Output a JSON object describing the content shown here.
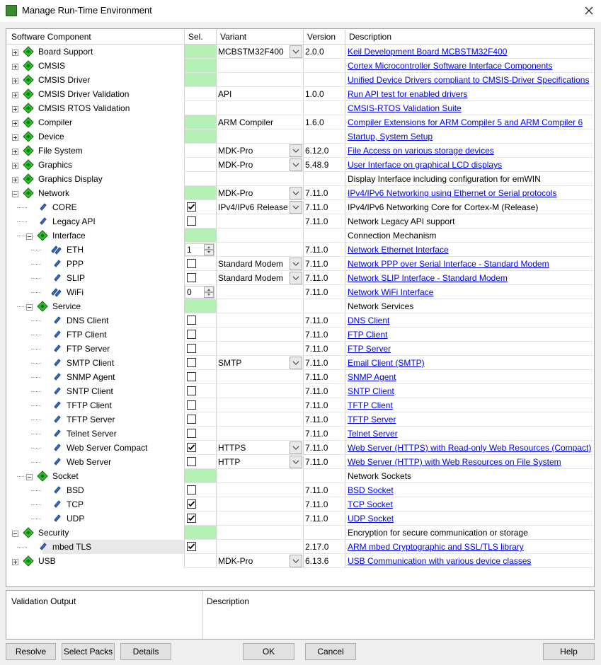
{
  "window": {
    "title": "Manage Run-Time Environment"
  },
  "grid": {
    "headers": [
      "Software Component",
      "Sel.",
      "Variant",
      "Version",
      "Description"
    ],
    "rows": [
      {
        "name": "Board Support",
        "icon": "green",
        "expanded": false,
        "sel": "required",
        "variant": "MCBSTM32F400",
        "dropdown": true,
        "version": "2.0.0",
        "description": "Keil Development Board MCBSTM32F400",
        "link": true
      },
      {
        "name": "CMSIS",
        "icon": "green",
        "expanded": false,
        "sel": "required",
        "description": "Cortex Microcontroller Software Interface Components",
        "link": true
      },
      {
        "name": "CMSIS Driver",
        "icon": "green",
        "expanded": false,
        "sel": "required",
        "description": "Unified Device Drivers compliant to CMSIS-Driver Specifications",
        "link": true
      },
      {
        "name": "CMSIS Driver Validation",
        "icon": "green",
        "expanded": false,
        "variant": "API",
        "version": "1.0.0",
        "description": "Run API test for enabled drivers",
        "link": true
      },
      {
        "name": "CMSIS RTOS Validation",
        "icon": "green",
        "expanded": false,
        "description": "CMSIS-RTOS Validation Suite",
        "link": true
      },
      {
        "name": "Compiler",
        "icon": "green",
        "expanded": false,
        "sel": "required",
        "variant": "ARM Compiler",
        "version": "1.6.0",
        "description": "Compiler Extensions for ARM Compiler 5 and ARM Compiler 6",
        "link": true
      },
      {
        "name": "Device",
        "icon": "green",
        "expanded": false,
        "sel": "required",
        "description": "Startup, System Setup",
        "link": true
      },
      {
        "name": "File System",
        "icon": "green",
        "expanded": false,
        "variant": "MDK-Pro",
        "dropdown": true,
        "version": "6.12.0",
        "description": "File Access on various storage devices",
        "link": true
      },
      {
        "name": "Graphics",
        "icon": "green",
        "expanded": false,
        "variant": "MDK-Pro",
        "dropdown": true,
        "version": "5.48.9",
        "description": "User Interface on graphical LCD displays",
        "link": true
      },
      {
        "name": "Graphics Display",
        "icon": "green",
        "expanded": false,
        "description": "Display Interface including configuration for emWIN"
      },
      {
        "name": "Network",
        "icon": "green",
        "expanded": true,
        "sel": "required",
        "variant": "MDK-Pro",
        "dropdown": true,
        "version": "7.11.0",
        "description": "IPv4/IPv6 Networking using Ethernet or Serial protocols",
        "link": true,
        "children": [
          {
            "name": "CORE",
            "icon": "blue",
            "sel": "checkbox",
            "checked": true,
            "variant": "IPv4/IPv6 Release",
            "dropdown": true,
            "version": "7.11.0",
            "description": "IPv4/IPv6 Networking Core for Cortex-M (Release)"
          },
          {
            "name": "Legacy API",
            "icon": "blue",
            "sel": "checkbox",
            "checked": false,
            "version": "7.11.0",
            "description": "Network Legacy API support"
          },
          {
            "name": "Interface",
            "icon": "green",
            "expanded": true,
            "sel": "required",
            "description": "Connection Mechanism",
            "children": [
              {
                "name": "ETH",
                "icon": "multi",
                "sel": "spin",
                "spin": "1",
                "version": "7.11.0",
                "description": "Network Ethernet Interface",
                "link": true
              },
              {
                "name": "PPP",
                "icon": "blue",
                "sel": "checkbox",
                "checked": false,
                "variant": "Standard Modem",
                "dropdown": true,
                "version": "7.11.0",
                "description": "Network PPP over Serial Interface - Standard Modem",
                "link": true
              },
              {
                "name": "SLIP",
                "icon": "blue",
                "sel": "checkbox",
                "checked": false,
                "variant": "Standard Modem",
                "dropdown": true,
                "version": "7.11.0",
                "description": "Network SLIP Interface - Standard Modem",
                "link": true
              },
              {
                "name": "WiFi",
                "icon": "multi",
                "sel": "spin",
                "spin": "0",
                "version": "7.11.0",
                "description": "Network WiFi Interface",
                "link": true
              }
            ]
          },
          {
            "name": "Service",
            "icon": "green",
            "expanded": true,
            "sel": "required",
            "description": "Network Services",
            "children": [
              {
                "name": "DNS Client",
                "icon": "blue",
                "sel": "checkbox",
                "checked": false,
                "version": "7.11.0",
                "description": "DNS Client",
                "link": true
              },
              {
                "name": "FTP Client",
                "icon": "blue",
                "sel": "checkbox",
                "checked": false,
                "version": "7.11.0",
                "description": "FTP Client",
                "link": true
              },
              {
                "name": "FTP Server",
                "icon": "blue",
                "sel": "checkbox",
                "checked": false,
                "version": "7.11.0",
                "description": "FTP Server",
                "link": true
              },
              {
                "name": "SMTP Client",
                "icon": "blue",
                "sel": "checkbox",
                "checked": false,
                "variant": "SMTP",
                "dropdown": true,
                "version": "7.11.0",
                "description": "Email Client (SMTP)",
                "link": true
              },
              {
                "name": "SNMP Agent",
                "icon": "blue",
                "sel": "checkbox",
                "checked": false,
                "version": "7.11.0",
                "description": "SNMP Agent",
                "link": true
              },
              {
                "name": "SNTP Client",
                "icon": "blue",
                "sel": "checkbox",
                "checked": false,
                "version": "7.11.0",
                "description": "SNTP Client",
                "link": true
              },
              {
                "name": "TFTP Client",
                "icon": "blue",
                "sel": "checkbox",
                "checked": false,
                "version": "7.11.0",
                "description": "TFTP Client",
                "link": true
              },
              {
                "name": "TFTP Server",
                "icon": "blue",
                "sel": "checkbox",
                "checked": false,
                "version": "7.11.0",
                "description": "TFTP Server",
                "link": true
              },
              {
                "name": "Telnet Server",
                "icon": "blue",
                "sel": "checkbox",
                "checked": false,
                "version": "7.11.0",
                "description": "Telnet Server",
                "link": true
              },
              {
                "name": "Web Server Compact",
                "icon": "blue",
                "sel": "checkbox",
                "checked": true,
                "variant": "HTTPS",
                "dropdown": true,
                "version": "7.11.0",
                "description": "Web Server (HTTPS) with Read-only Web Resources (Compact)",
                "link": true
              },
              {
                "name": "Web Server",
                "icon": "blue",
                "sel": "checkbox",
                "checked": false,
                "variant": "HTTP",
                "dropdown": true,
                "version": "7.11.0",
                "description": "Web Server (HTTP) with Web Resources on File System",
                "link": true
              }
            ]
          },
          {
            "name": "Socket",
            "icon": "green",
            "expanded": true,
            "sel": "required",
            "description": "Network Sockets",
            "children": [
              {
                "name": "BSD",
                "icon": "blue",
                "sel": "checkbox",
                "checked": false,
                "version": "7.11.0",
                "description": "BSD Socket",
                "link": true
              },
              {
                "name": "TCP",
                "icon": "blue",
                "sel": "checkbox",
                "checked": true,
                "version": "7.11.0",
                "description": "TCP Socket",
                "link": true
              },
              {
                "name": "UDP",
                "icon": "blue",
                "sel": "checkbox",
                "checked": true,
                "version": "7.11.0",
                "description": "UDP Socket",
                "link": true
              }
            ]
          }
        ]
      },
      {
        "name": "Security",
        "icon": "green",
        "expanded": true,
        "sel": "required",
        "description": "Encryption for secure communication or storage",
        "children": [
          {
            "name": "mbed TLS",
            "icon": "blue",
            "selected": true,
            "sel": "checkbox",
            "checked": true,
            "version": "2.17.0",
            "description": "ARM mbed Cryptographic and SSL/TLS library",
            "link": true
          }
        ]
      },
      {
        "name": "USB",
        "icon": "green",
        "expanded": false,
        "variant": "MDK-Pro",
        "dropdown": true,
        "version": "6.13.6",
        "description": "USB Communication with various device classes",
        "link": true
      }
    ]
  },
  "bottom": {
    "headers": [
      "Validation Output",
      "Description"
    ]
  },
  "buttons": [
    "Resolve",
    "Select Packs",
    "Details",
    "OK",
    "Cancel",
    "Help"
  ]
}
